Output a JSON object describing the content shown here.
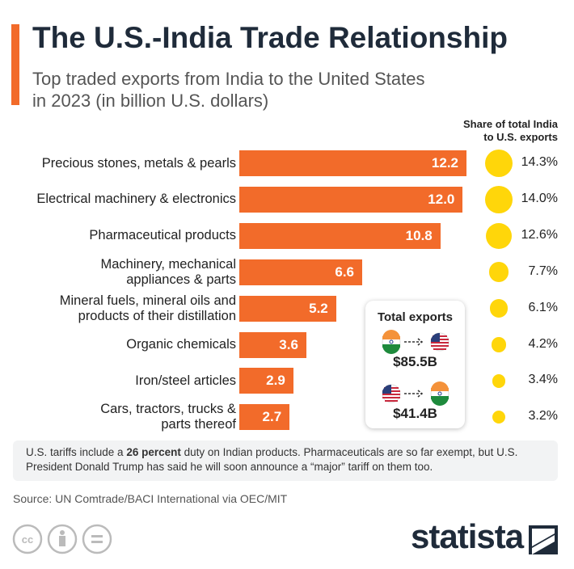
{
  "chart_data": {
    "type": "bar",
    "title": "The U.S.-India Trade Relationship",
    "subtitle": "Top traded exports from India to the United States\nin 2023 (in billion U.S. dollars)",
    "categories": [
      "Precious stones, metals & pearls",
      "Electrical machinery & electronics",
      "Pharmaceutical products",
      "Machinery, mechanical\nappliances & parts",
      "Mineral fuels, mineral oils and\nproducts of their distillation",
      "Organic chemicals",
      "Iron/steel articles",
      "Cars, tractors, trucks &\nparts thereof"
    ],
    "values": [
      12.2,
      12.0,
      10.8,
      6.6,
      5.2,
      3.6,
      2.9,
      2.7
    ],
    "value_labels": [
      "12.2",
      "12.0",
      "10.8",
      "6.6",
      "5.2",
      "3.6",
      "2.9",
      "2.7"
    ],
    "color": "#f26b2a",
    "share_header": "Share of total India\nto U.S. exports",
    "shares": [
      14.3,
      14.0,
      12.6,
      7.7,
      6.1,
      4.2,
      3.4,
      3.2
    ],
    "share_labels": [
      "14.3%",
      "14.0%",
      "12.6%",
      "7.7%",
      "6.1%",
      "4.2%",
      "3.4%",
      "3.2%"
    ],
    "share_color": "#ffd60a",
    "total_exports": {
      "title": "Total exports",
      "india_to_us": "$85.5B",
      "us_to_india": "$41.4B"
    },
    "note": {
      "before": "U.S. tariffs include a ",
      "bold": "26 percent",
      "after": " duty on Indian products. Pharmaceuticals are so far exempt, but U.S. President Donald Trump has said he will soon announce a “major” tariff on them too."
    },
    "source": "Source: UN Comtrade/BACI International via OEC/MIT",
    "logo": "statista"
  }
}
